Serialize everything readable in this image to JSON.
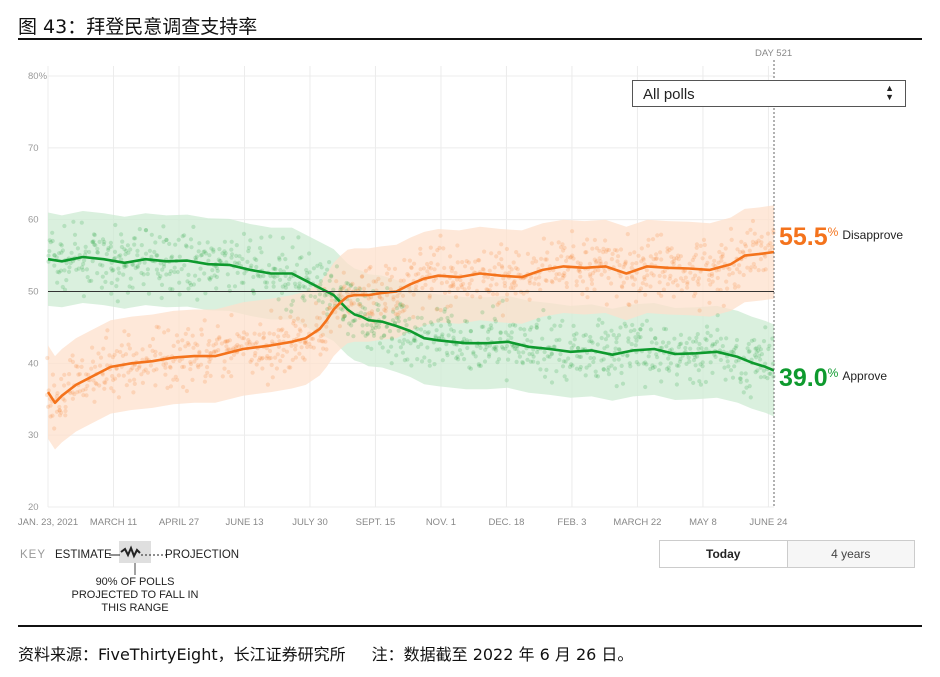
{
  "figure": {
    "title": "图 43：拜登民意调查支持率",
    "source": "资料来源：FiveThirtyEight，长江证券研究所",
    "note": "注：数据截至 2022 年 6 月 26 日。"
  },
  "controls": {
    "poll_filter": "All polls",
    "toggle_today": "Today",
    "toggle_years": "4 years",
    "day_marker": "DAY 521"
  },
  "key": {
    "label": "KEY",
    "estimate": "ESTIMATE",
    "projection": "PROJECTION",
    "note_line1": "90% OF POLLS",
    "note_line2": "PROJECTED TO FALL IN",
    "note_line3": "THIS RANGE"
  },
  "endpoints": {
    "disapprove_value": "55.5",
    "disapprove_label": "Disapprove",
    "approve_value": "39.0",
    "approve_label": "Approve",
    "percent_sign": "%"
  },
  "colors": {
    "approve": "#0e9a2e",
    "disapprove": "#f4731c",
    "approve_band": "#cdebd3",
    "disapprove_band": "#fde0cc"
  },
  "chart_data": {
    "type": "line",
    "title": "Biden approval rating",
    "ylim": [
      20,
      80
    ],
    "yticks": [
      "20",
      "30",
      "40",
      "50",
      "60",
      "70",
      "80%"
    ],
    "ytick_values": [
      20,
      30,
      40,
      50,
      60,
      70,
      80
    ],
    "x_day_range": [
      0,
      521
    ],
    "x_labels": [
      "JAN. 23, 2021",
      "MARCH 11",
      "APRIL 27",
      "JUNE 13",
      "JULY 30",
      "SEPT. 15",
      "NOV. 1",
      "DEC. 18",
      "FEB. 3",
      "MARCH 22",
      "MAY 8",
      "JUNE 24"
    ],
    "x_label_days": [
      0,
      47,
      94,
      141,
      188,
      235,
      282,
      329,
      376,
      423,
      470,
      517
    ],
    "reference_line": 50,
    "series": [
      {
        "name": "Approve",
        "days": [
          0,
          10,
          25,
          40,
          55,
          70,
          85,
          100,
          115,
          130,
          145,
          160,
          175,
          185,
          195,
          200,
          205,
          210,
          215,
          220,
          225,
          230,
          240,
          250,
          260,
          270,
          280,
          290,
          300,
          315,
          330,
          345,
          360,
          375,
          390,
          405,
          420,
          435,
          450,
          465,
          480,
          495,
          505,
          515,
          521
        ],
        "values": [
          54.5,
          54.2,
          54.8,
          54.5,
          54.0,
          54.5,
          54.2,
          54.3,
          53.8,
          53.7,
          53.0,
          52.5,
          52.5,
          51.5,
          50.5,
          50.0,
          49.5,
          48.5,
          47.5,
          46.8,
          46.5,
          46.0,
          45.8,
          45.2,
          44.5,
          43.5,
          43.2,
          43.0,
          42.8,
          42.8,
          43.0,
          42.3,
          42.0,
          41.6,
          41.8,
          41.2,
          41.8,
          42.0,
          41.3,
          41.4,
          41.6,
          40.9,
          40.1,
          39.5,
          39.0
        ],
        "band_low": [
          48.0,
          47.8,
          48.4,
          48.1,
          47.6,
          48.1,
          47.8,
          47.9,
          47.4,
          47.3,
          46.6,
          46.1,
          46.1,
          45.1,
          44.1,
          43.6,
          43.1,
          42.1,
          41.1,
          40.4,
          40.1,
          39.6,
          39.4,
          38.8,
          38.1,
          37.1,
          36.8,
          36.6,
          36.4,
          36.4,
          36.6,
          35.9,
          35.6,
          35.2,
          35.4,
          34.8,
          35.4,
          35.6,
          34.9,
          35.0,
          35.2,
          34.5,
          33.7,
          33.1,
          32.6
        ],
        "band_high": [
          61.0,
          60.6,
          61.2,
          60.9,
          60.4,
          60.9,
          60.6,
          60.7,
          60.2,
          60.1,
          59.4,
          58.9,
          58.9,
          57.9,
          56.9,
          56.4,
          55.9,
          54.9,
          53.9,
          53.2,
          52.9,
          52.4,
          52.2,
          51.6,
          50.9,
          49.9,
          49.6,
          49.4,
          49.2,
          49.2,
          49.4,
          48.7,
          48.4,
          48.0,
          48.2,
          47.6,
          48.2,
          48.4,
          47.7,
          47.8,
          48.0,
          47.3,
          46.5,
          45.9,
          45.4
        ]
      },
      {
        "name": "Disapprove",
        "days": [
          0,
          5,
          10,
          20,
          30,
          45,
          60,
          75,
          90,
          105,
          120,
          140,
          160,
          175,
          185,
          195,
          200,
          205,
          210,
          215,
          220,
          230,
          240,
          250,
          260,
          270,
          280,
          295,
          310,
          325,
          340,
          355,
          370,
          385,
          400,
          415,
          430,
          445,
          460,
          475,
          490,
          500,
          510,
          521
        ],
        "values": [
          36.0,
          34.5,
          35.5,
          37.0,
          38.0,
          39.5,
          40.0,
          40.3,
          40.8,
          41.0,
          41.0,
          42.0,
          42.5,
          43.0,
          43.5,
          44.8,
          46.0,
          47.5,
          48.5,
          49.3,
          49.5,
          49.5,
          49.8,
          50.0,
          51.0,
          51.8,
          52.2,
          52.0,
          52.5,
          52.2,
          52.0,
          53.0,
          53.5,
          53.3,
          53.5,
          52.5,
          53.5,
          53.3,
          53.2,
          53.0,
          53.8,
          55.0,
          55.2,
          55.5
        ],
        "band_low": [
          29.5,
          28.0,
          29.0,
          30.5,
          31.5,
          33.0,
          33.5,
          33.8,
          34.3,
          34.5,
          34.5,
          35.5,
          36.0,
          36.5,
          37.0,
          38.3,
          39.5,
          41.0,
          42.0,
          42.8,
          43.0,
          43.0,
          43.3,
          43.5,
          44.5,
          45.3,
          45.7,
          45.5,
          46.0,
          45.7,
          45.5,
          46.5,
          47.0,
          46.8,
          47.0,
          46.0,
          47.0,
          46.8,
          46.7,
          46.5,
          47.3,
          48.5,
          48.7,
          49.0
        ],
        "band_high": [
          42.5,
          41.0,
          42.0,
          43.5,
          44.5,
          46.0,
          46.5,
          46.8,
          47.3,
          47.5,
          47.5,
          48.5,
          49.0,
          49.5,
          50.0,
          51.3,
          52.5,
          54.0,
          55.0,
          55.8,
          56.0,
          56.0,
          56.3,
          56.5,
          57.5,
          58.3,
          58.7,
          58.5,
          59.0,
          58.7,
          58.5,
          59.5,
          60.0,
          59.8,
          60.0,
          59.0,
          60.0,
          59.8,
          59.7,
          59.5,
          60.3,
          61.5,
          61.7,
          62.0
        ]
      }
    ]
  }
}
